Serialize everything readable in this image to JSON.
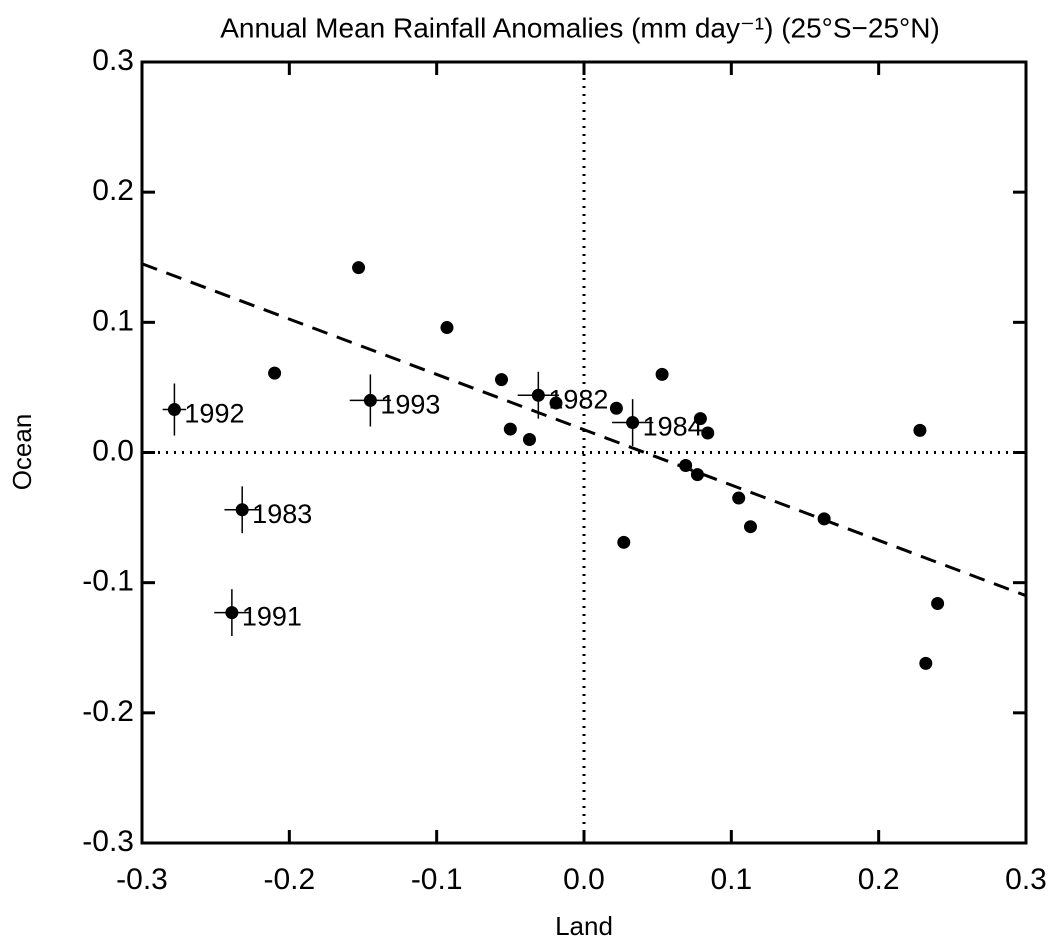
{
  "chart_data": {
    "type": "scatter",
    "title": "Annual Mean Rainfall Anomalies (mm day⁻¹) (25°S−25°N)",
    "x_label": "Land",
    "y_label": "Ocean",
    "x": [
      -0.21,
      -0.153,
      -0.093,
      -0.278,
      -0.145,
      -0.056,
      -0.05,
      -0.037,
      -0.031,
      -0.019,
      0.022,
      0.033,
      0.053,
      0.079,
      0.084,
      0.069,
      0.077,
      0.027,
      0.105,
      0.113,
      0.163,
      0.228,
      0.232,
      0.24,
      -0.232,
      -0.239
    ],
    "values": [
      0.061,
      0.142,
      0.096,
      0.033,
      0.04,
      0.056,
      0.018,
      0.01,
      0.044,
      0.038,
      0.034,
      0.023,
      0.06,
      0.026,
      0.015,
      -0.01,
      -0.017,
      -0.069,
      -0.035,
      -0.057,
      -0.051,
      0.017,
      -0.162,
      -0.116,
      -0.044,
      -0.123
    ],
    "point_labels": [
      null,
      null,
      null,
      "1992",
      "1993",
      null,
      null,
      null,
      "1982",
      null,
      null,
      "1984",
      null,
      null,
      null,
      null,
      null,
      null,
      null,
      null,
      null,
      null,
      null,
      null,
      "1983",
      "1991"
    ],
    "xerr": [
      null,
      null,
      null,
      0.008,
      0.014,
      null,
      null,
      null,
      0.014,
      null,
      null,
      0.014,
      null,
      null,
      null,
      null,
      null,
      null,
      null,
      null,
      null,
      null,
      null,
      null,
      0.012,
      0.012
    ],
    "yerr": [
      null,
      null,
      null,
      0.02,
      0.02,
      null,
      null,
      null,
      0.018,
      null,
      null,
      0.018,
      null,
      null,
      null,
      null,
      null,
      null,
      null,
      null,
      null,
      null,
      null,
      null,
      0.018,
      0.018
    ],
    "color": "#000000",
    "fit_line": {
      "x": [
        -0.3,
        0.3
      ],
      "y": [
        0.145,
        -0.11
      ]
    },
    "zero_lines": true,
    "xlim": [
      -0.3,
      0.3
    ],
    "ylim": [
      -0.3,
      0.3
    ],
    "xticks": [
      -0.3,
      -0.2,
      -0.1,
      {
        "value": 0,
        "label": "0.0"
      },
      0.1,
      0.2,
      0.3
    ],
    "yticks": [
      -0.3,
      -0.2,
      -0.1,
      {
        "value": 0,
        "label": "0.0"
      },
      0.1,
      0.2,
      0.3
    ]
  }
}
